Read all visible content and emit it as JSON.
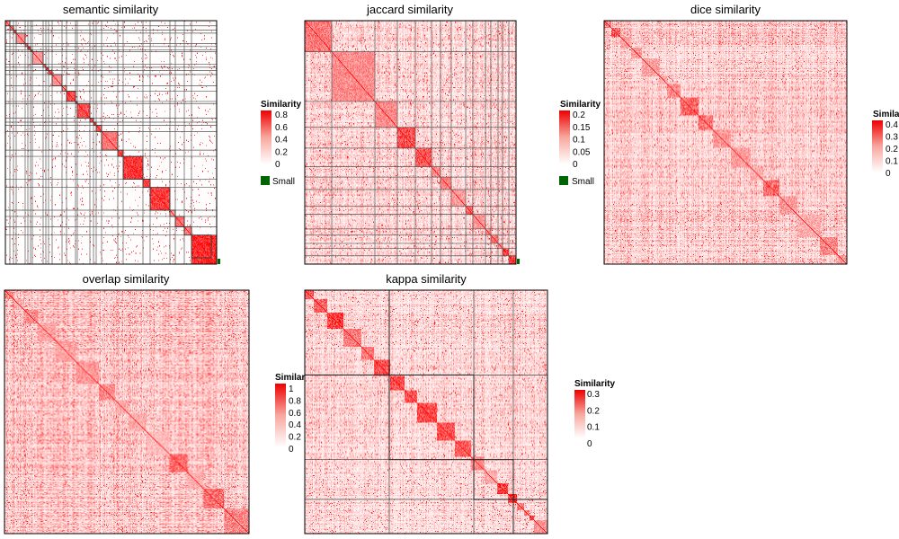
{
  "chart_data": [
    {
      "type": "heatmap",
      "title": "semantic similarity",
      "size": 235,
      "blocks": [
        5,
        4,
        3,
        10,
        3,
        3,
        2,
        12,
        3,
        3,
        4,
        11,
        5,
        10,
        2,
        14,
        4,
        3,
        6,
        18,
        6,
        22,
        8,
        22,
        6,
        10,
        8,
        22
      ],
      "bg": [
        0.0,
        0.02
      ],
      "within": [
        0.5,
        0.82
      ],
      "diag": 0.95,
      "overlay": "both",
      "grid_lines": true,
      "density": 0.03,
      "small_marker": true,
      "legend": {
        "title": "Similarity",
        "max": 0.8,
        "ticks": [
          "0.8",
          "0.6",
          "0.4",
          "0.2",
          "0"
        ],
        "tick_values": [
          0.8,
          0.6,
          0.4,
          0.2,
          0
        ],
        "small_label": "Small",
        "small_color": "#006400"
      }
    },
    {
      "type": "heatmap",
      "title": "jaccard similarity",
      "size": 235,
      "blocks": [
        30,
        48,
        25,
        20,
        18,
        10,
        12,
        16,
        8,
        14,
        6,
        8,
        5,
        7,
        8
      ],
      "bg": [
        0.02,
        0.3
      ],
      "within": [
        0.4,
        0.85
      ],
      "diag": 0.95,
      "overlay": "none",
      "grid_lines": true,
      "density": 0.04,
      "small_marker": true,
      "legend": {
        "title": "Similarity",
        "max": 0.2,
        "ticks": [
          "0.2",
          "0.15",
          "0.1",
          "0.05",
          "0"
        ],
        "tick_values": [
          0.2,
          0.15,
          0.1,
          0.05,
          0
        ],
        "small_label": "Small",
        "small_color": "#006400"
      }
    },
    {
      "type": "heatmap",
      "title": "dice similarity",
      "size": 270,
      "blocks": [
        8,
        10,
        12,
        12,
        20,
        8,
        15,
        20,
        16,
        20,
        22,
        14,
        18,
        20,
        25,
        20,
        10
      ],
      "bg": [
        0.05,
        0.35
      ],
      "within": [
        0.3,
        0.8
      ],
      "diag": 0.95,
      "overlay": "none",
      "grid_lines": false,
      "density": 0.03,
      "small_marker": false,
      "legend": {
        "title": "Similarity",
        "max": 0.4,
        "ticks": [
          "0.4",
          "0.3",
          "0.2",
          "0.1",
          "0"
        ],
        "tick_values": [
          0.4,
          0.3,
          0.2,
          0.1,
          0
        ],
        "small_label": "",
        "small_color": ""
      }
    },
    {
      "type": "heatmap",
      "title": "overlap similarity",
      "size": 270,
      "blocks": [
        10,
        12,
        15,
        20,
        22,
        25,
        18,
        15,
        20,
        25,
        20,
        18,
        22,
        28
      ],
      "bg": [
        0.05,
        0.4
      ],
      "within": [
        0.25,
        0.7
      ],
      "diag": 0.95,
      "overlay": "none",
      "grid_lines": false,
      "density": 0.05,
      "small_marker": false,
      "legend": {
        "title": "Similarity",
        "max": 1,
        "ticks": [
          "1",
          "0.8",
          "0.6",
          "0.4",
          "0.2",
          "0"
        ],
        "tick_values": [
          1,
          0.8,
          0.6,
          0.4,
          0.2,
          0
        ],
        "small_label": "",
        "small_color": ""
      }
    },
    {
      "type": "heatmap",
      "title": "kappa similarity",
      "size": 270,
      "blocks": [
        10,
        15,
        18,
        20,
        14,
        18,
        16,
        14,
        22,
        20,
        18,
        15,
        14,
        12,
        10,
        8,
        6,
        5,
        15
      ],
      "major": [
        0,
        94,
        188,
        232
      ],
      "bg": [
        0.03,
        0.3
      ],
      "within": [
        0.4,
        0.85
      ],
      "diag": 0.95,
      "overlay": "major",
      "grid_lines": true,
      "density": 0.04,
      "small_marker": false,
      "legend": {
        "title": "Similarity",
        "max": 0.3,
        "ticks": [
          "0.3",
          "0.2",
          "0.1",
          "0"
        ],
        "tick_values": [
          0.3,
          0.2,
          0.1,
          0
        ],
        "small_label": "",
        "small_color": ""
      }
    }
  ]
}
